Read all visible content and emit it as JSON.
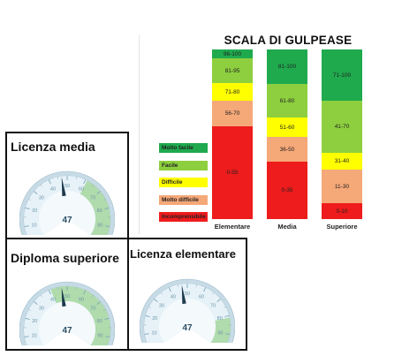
{
  "scale": {
    "title": "SCALA DI GULPEASE",
    "columns": [
      {
        "label": "Elementare",
        "segments": [
          {
            "label": "96-100",
            "from": 96,
            "to": 100,
            "color": "#1faa4e"
          },
          {
            "label": "81-95",
            "from": 81,
            "to": 95,
            "color": "#8dcf3f"
          },
          {
            "label": "71-80",
            "from": 71,
            "to": 80,
            "color": "#ffff00"
          },
          {
            "label": "56-70",
            "from": 56,
            "to": 70,
            "color": "#f5a878"
          },
          {
            "label": "0-55",
            "from": 0,
            "to": 55,
            "color": "#ee1c1c"
          }
        ]
      },
      {
        "label": "Media",
        "segments": [
          {
            "label": "81-100",
            "from": 81,
            "to": 100,
            "color": "#1faa4e"
          },
          {
            "label": "61-80",
            "from": 61,
            "to": 80,
            "color": "#8dcf3f"
          },
          {
            "label": "51-60",
            "from": 51,
            "to": 60,
            "color": "#ffff00"
          },
          {
            "label": "36-50",
            "from": 36,
            "to": 50,
            "color": "#f5a878"
          },
          {
            "label": "0-35",
            "from": 0,
            "to": 35,
            "color": "#ee1c1c"
          }
        ]
      },
      {
        "label": "Superiore",
        "segments": [
          {
            "label": "71-100",
            "from": 71,
            "to": 100,
            "color": "#1faa4e"
          },
          {
            "label": "41-70",
            "from": 41,
            "to": 70,
            "color": "#8dcf3f"
          },
          {
            "label": "31-40",
            "from": 31,
            "to": 40,
            "color": "#ffff00"
          },
          {
            "label": "11-30",
            "from": 11,
            "to": 30,
            "color": "#f5a878"
          },
          {
            "label": "0-10",
            "from": 0,
            "to": 10,
            "color": "#ee1c1c"
          }
        ]
      }
    ],
    "legend": [
      {
        "label": "Molto facile",
        "color": "#1faa4e"
      },
      {
        "label": "Facile",
        "color": "#8dcf3f"
      },
      {
        "label": "Difficile",
        "color": "#ffff00"
      },
      {
        "label": "Molto difficile",
        "color": "#f5a878"
      },
      {
        "label": "Incomprensibile",
        "color": "#ee1c1c"
      }
    ]
  },
  "gauges": [
    {
      "title": "Licenza media",
      "value": 47,
      "value_label": "47",
      "green_from": 61
    },
    {
      "title": "Diploma superiore",
      "value": 47,
      "value_label": "47",
      "green_from": 41
    },
    {
      "title": "Licenza elementare",
      "value": 47,
      "value_label": "47",
      "green_from": 81
    }
  ],
  "gauge_ticks": [
    "0",
    "10",
    "20",
    "30",
    "40",
    "50",
    "60",
    "70",
    "80",
    "90",
    "100"
  ],
  "chart_data": [
    {
      "type": "bar",
      "title": "SCALA DI GULPEASE",
      "categories": [
        "Elementare",
        "Media",
        "Superiore"
      ],
      "ylim": [
        0,
        100
      ],
      "series": [
        {
          "name": "Molto facile",
          "ranges": [
            [
              96,
              100
            ],
            [
              81,
              100
            ],
            [
              71,
              100
            ]
          ]
        },
        {
          "name": "Facile",
          "ranges": [
            [
              81,
              95
            ],
            [
              61,
              80
            ],
            [
              41,
              70
            ]
          ]
        },
        {
          "name": "Difficile",
          "ranges": [
            [
              71,
              80
            ],
            [
              51,
              60
            ],
            [
              31,
              40
            ]
          ]
        },
        {
          "name": "Molto difficile",
          "ranges": [
            [
              56,
              70
            ],
            [
              36,
              50
            ],
            [
              11,
              30
            ]
          ]
        },
        {
          "name": "Incomprensibile",
          "ranges": [
            [
              0,
              55
            ],
            [
              0,
              35
            ],
            [
              0,
              10
            ]
          ]
        }
      ],
      "legend": "left"
    },
    {
      "type": "gauge",
      "title": "Licenza media",
      "value": 47,
      "range": [
        0,
        100
      ]
    },
    {
      "type": "gauge",
      "title": "Diploma superiore",
      "value": 47,
      "range": [
        0,
        100
      ]
    },
    {
      "type": "gauge",
      "title": "Licenza elementare",
      "value": 47,
      "range": [
        0,
        100
      ]
    }
  ]
}
